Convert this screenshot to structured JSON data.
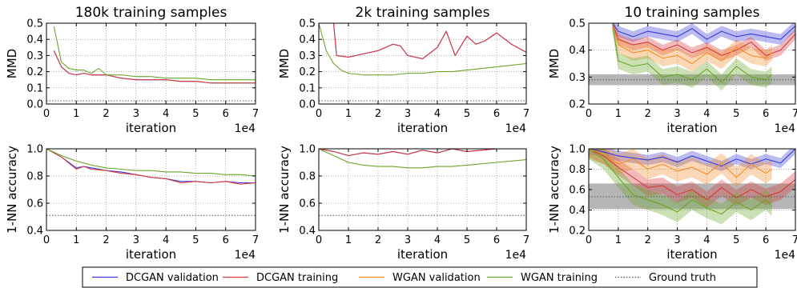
{
  "legend": {
    "placement": "bottom-center",
    "items": [
      {
        "label": "DCGAN validation",
        "color": "#3b3bd9",
        "style": "solid"
      },
      {
        "label": "DCGAN training",
        "color": "#d93b3b",
        "style": "solid"
      },
      {
        "label": "WGAN validation",
        "color": "#f2902e",
        "style": "solid"
      },
      {
        "label": "WGAN training",
        "color": "#6aa62a",
        "style": "solid"
      },
      {
        "label": "Ground truth",
        "color": "#555555",
        "style": "dotted"
      }
    ]
  },
  "colors": {
    "dcgan_val": "#3b3bd9",
    "dcgan_train": "#d93b3b",
    "wgan_val": "#f2902e",
    "wgan_train": "#6aa62a",
    "ground_truth": "#555555",
    "ground_truth_band": "#a9a9a9"
  },
  "chart_data": [
    {
      "type": "line",
      "title": "180k training samples",
      "xlabel": "iteration",
      "xoffset": "1e4",
      "ylabel": "MMD",
      "xlim": [
        0,
        7
      ],
      "ylim": [
        0,
        0.5
      ],
      "xticks": [
        "0",
        "1",
        "2",
        "3",
        "4",
        "5",
        "6",
        "7"
      ],
      "yticks": [
        "0.0",
        "0.1",
        "0.2",
        "0.3",
        "0.4",
        "0.5"
      ],
      "grid": true,
      "series": [
        {
          "key": "dcgan_val",
          "x": [
            0.25,
            0.5,
            0.75,
            1,
            1.25,
            1.5,
            1.75,
            2,
            2.5,
            3,
            3.5,
            4,
            4.5,
            5,
            5.5,
            6,
            6.5,
            7
          ],
          "y": [
            0.33,
            0.23,
            0.19,
            0.18,
            0.19,
            0.18,
            0.18,
            0.18,
            0.16,
            0.15,
            0.15,
            0.15,
            0.14,
            0.14,
            0.13,
            0.13,
            0.13,
            0.13
          ]
        },
        {
          "key": "dcgan_train",
          "x": [
            0.25,
            0.5,
            0.75,
            1,
            1.25,
            1.5,
            1.75,
            2,
            2.5,
            3,
            3.5,
            4,
            4.5,
            5,
            5.5,
            6,
            6.5,
            7
          ],
          "y": [
            0.33,
            0.23,
            0.19,
            0.18,
            0.19,
            0.18,
            0.18,
            0.18,
            0.16,
            0.15,
            0.15,
            0.15,
            0.14,
            0.14,
            0.13,
            0.13,
            0.13,
            0.13
          ]
        },
        {
          "key": "wgan_train",
          "x": [
            0.25,
            0.5,
            0.75,
            1,
            1.25,
            1.5,
            1.75,
            2,
            2.5,
            3,
            3.5,
            4,
            4.5,
            5,
            5.5,
            6,
            6.5,
            7
          ],
          "y": [
            0.48,
            0.26,
            0.22,
            0.21,
            0.21,
            0.19,
            0.22,
            0.18,
            0.18,
            0.17,
            0.17,
            0.16,
            0.16,
            0.16,
            0.15,
            0.15,
            0.15,
            0.15
          ]
        }
      ],
      "ground_truth": {
        "y": 0.02
      }
    },
    {
      "type": "line",
      "title": "2k training samples",
      "xlabel": "iteration",
      "xoffset": "1e4",
      "ylabel": "MMD",
      "xlim": [
        0,
        7
      ],
      "ylim": [
        0,
        0.5
      ],
      "xticks": [
        "0",
        "1",
        "2",
        "3",
        "4",
        "5",
        "6",
        "7"
      ],
      "yticks": [
        "0.0",
        "0.1",
        "0.2",
        "0.3",
        "0.4",
        "0.5"
      ],
      "grid": true,
      "series": [
        {
          "key": "dcgan_val",
          "x": [
            0.5,
            0.6,
            1,
            1.5,
            2,
            2.5,
            2.75,
            3,
            3.5,
            4,
            4.3,
            4.6,
            5,
            5.3,
            5.6,
            6,
            6.5,
            7
          ],
          "y": [
            0.5,
            0.3,
            0.29,
            0.31,
            0.33,
            0.37,
            0.36,
            0.3,
            0.28,
            0.35,
            0.45,
            0.3,
            0.42,
            0.37,
            0.39,
            0.44,
            0.37,
            0.32
          ]
        },
        {
          "key": "dcgan_train",
          "x": [
            0.5,
            0.6,
            1,
            1.5,
            2,
            2.5,
            2.75,
            3,
            3.5,
            4,
            4.3,
            4.6,
            5,
            5.3,
            5.6,
            6,
            6.5,
            7
          ],
          "y": [
            0.5,
            0.3,
            0.29,
            0.31,
            0.33,
            0.37,
            0.36,
            0.3,
            0.28,
            0.35,
            0.45,
            0.3,
            0.42,
            0.37,
            0.39,
            0.44,
            0.37,
            0.32
          ]
        },
        {
          "key": "wgan_train",
          "x": [
            0,
            0.25,
            0.5,
            0.75,
            1,
            1.5,
            2,
            2.5,
            3,
            3.5,
            4,
            4.5,
            5,
            5.5,
            6,
            6.5,
            7
          ],
          "y": [
            0.5,
            0.33,
            0.25,
            0.21,
            0.19,
            0.18,
            0.18,
            0.18,
            0.19,
            0.19,
            0.2,
            0.2,
            0.21,
            0.22,
            0.23,
            0.24,
            0.25
          ]
        }
      ],
      "ground_truth": {
        "y": 0.02
      }
    },
    {
      "type": "line",
      "title": "10 training samples",
      "xlabel": "iteration",
      "xoffset": "1e4",
      "ylabel": "MMD",
      "xlim": [
        0,
        7
      ],
      "ylim": [
        0.2,
        0.5
      ],
      "xticks": [
        "0",
        "1",
        "2",
        "3",
        "4",
        "5",
        "6",
        "7"
      ],
      "yticks": [
        "0.2",
        "0.3",
        "0.4",
        "0.5"
      ],
      "grid": true,
      "series": [
        {
          "key": "dcgan_val",
          "band": 0.02,
          "x": [
            0.8,
            1,
            1.5,
            2,
            2.5,
            3,
            3.5,
            4,
            4.5,
            5,
            5.5,
            6,
            6.5,
            7
          ],
          "y": [
            0.5,
            0.47,
            0.45,
            0.47,
            0.46,
            0.45,
            0.48,
            0.44,
            0.47,
            0.45,
            0.46,
            0.45,
            0.44,
            0.49
          ]
        },
        {
          "key": "dcgan_train",
          "band": 0.02,
          "x": [
            0.8,
            1,
            1.5,
            2,
            2.5,
            3,
            3.5,
            4,
            4.5,
            5,
            5.5,
            6,
            6.5,
            7
          ],
          "y": [
            0.5,
            0.44,
            0.42,
            0.43,
            0.4,
            0.42,
            0.39,
            0.41,
            0.38,
            0.4,
            0.43,
            0.38,
            0.4,
            0.46
          ]
        },
        {
          "key": "wgan_val",
          "band": 0.03,
          "x": [
            0.8,
            1,
            1.5,
            2,
            2.5,
            3,
            3.5,
            4,
            4.5,
            5,
            5.5,
            6,
            6.2
          ],
          "y": [
            0.5,
            0.42,
            0.39,
            0.4,
            0.37,
            0.38,
            0.35,
            0.39,
            0.36,
            0.41,
            0.38,
            0.37,
            0.39
          ]
        },
        {
          "key": "wgan_train",
          "band": 0.03,
          "x": [
            0.8,
            1,
            1.5,
            2,
            2.5,
            3,
            3.5,
            4,
            4.5,
            5,
            5.5,
            6,
            6.2
          ],
          "y": [
            0.5,
            0.36,
            0.34,
            0.35,
            0.3,
            0.31,
            0.29,
            0.33,
            0.28,
            0.34,
            0.3,
            0.29,
            0.31
          ]
        }
      ],
      "ground_truth": {
        "y": 0.29,
        "band": [
          0.27,
          0.31
        ]
      }
    },
    {
      "type": "line",
      "title": "",
      "xlabel": "iteration",
      "xoffset": "1e4",
      "ylabel": "1-NN accuracy",
      "xlim": [
        0,
        7
      ],
      "ylim": [
        0.4,
        1.0
      ],
      "xticks": [
        "0",
        "1",
        "2",
        "3",
        "4",
        "5",
        "6",
        "7"
      ],
      "yticks": [
        "0.4",
        "0.6",
        "0.8",
        "1.0"
      ],
      "grid": true,
      "series": [
        {
          "key": "dcgan_val",
          "x": [
            0,
            0.5,
            1,
            1.25,
            1.5,
            2,
            2.5,
            3,
            3.5,
            4,
            4.5,
            5,
            5.5,
            6,
            6.5,
            7
          ],
          "y": [
            1.0,
            0.94,
            0.86,
            0.87,
            0.86,
            0.84,
            0.83,
            0.81,
            0.79,
            0.78,
            0.76,
            0.76,
            0.75,
            0.76,
            0.75,
            0.75
          ]
        },
        {
          "key": "dcgan_train",
          "x": [
            0,
            0.5,
            1,
            1.25,
            1.5,
            2,
            2.5,
            3,
            3.5,
            4,
            4.5,
            5,
            5.5,
            6,
            6.5,
            7
          ],
          "y": [
            1.0,
            0.94,
            0.85,
            0.87,
            0.85,
            0.84,
            0.82,
            0.81,
            0.79,
            0.78,
            0.75,
            0.76,
            0.75,
            0.76,
            0.74,
            0.75
          ]
        },
        {
          "key": "wgan_train",
          "x": [
            0,
            0.5,
            1,
            1.5,
            2,
            2.5,
            3,
            3.5,
            4,
            4.5,
            5,
            5.5,
            6,
            6.5,
            7
          ],
          "y": [
            1.0,
            0.95,
            0.91,
            0.88,
            0.86,
            0.85,
            0.84,
            0.84,
            0.83,
            0.83,
            0.82,
            0.82,
            0.81,
            0.81,
            0.8
          ]
        }
      ],
      "ground_truth": {
        "y": 0.51
      }
    },
    {
      "type": "line",
      "title": "",
      "xlabel": "iteration",
      "xoffset": "1e4",
      "ylabel": "1-NN accuracy",
      "xlim": [
        0,
        7
      ],
      "ylim": [
        0.4,
        1.0
      ],
      "xticks": [
        "0",
        "1",
        "2",
        "3",
        "4",
        "5",
        "6",
        "7"
      ],
      "yticks": [
        "0.4",
        "0.6",
        "0.8",
        "1.0"
      ],
      "grid": true,
      "series": [
        {
          "key": "dcgan_val",
          "x": [
            0,
            0.5,
            1,
            1.5,
            2,
            2.5,
            3,
            3.5,
            4,
            4.5,
            5,
            5.5,
            6,
            6.5,
            7
          ],
          "y": [
            1.0,
            0.98,
            0.95,
            0.97,
            0.96,
            0.98,
            0.96,
            0.99,
            0.97,
            1.0,
            0.98,
            0.99,
            1.0,
            1.0,
            1.0
          ]
        },
        {
          "key": "dcgan_train",
          "x": [
            0,
            0.5,
            1,
            1.5,
            2,
            2.5,
            3,
            3.5,
            4,
            4.5,
            5,
            5.5,
            6,
            6.5,
            7
          ],
          "y": [
            1.0,
            0.98,
            0.95,
            0.97,
            0.96,
            0.98,
            0.96,
            0.99,
            0.97,
            1.0,
            0.98,
            0.99,
            1.0,
            1.0,
            1.0
          ]
        },
        {
          "key": "wgan_train",
          "x": [
            0,
            0.5,
            1,
            1.5,
            2,
            2.5,
            3,
            3.5,
            4,
            4.5,
            5,
            5.5,
            6,
            6.5,
            7
          ],
          "y": [
            1.0,
            0.95,
            0.9,
            0.88,
            0.87,
            0.87,
            0.86,
            0.86,
            0.87,
            0.87,
            0.88,
            0.89,
            0.9,
            0.91,
            0.92
          ]
        }
      ],
      "ground_truth": {
        "y": 0.51
      }
    },
    {
      "type": "line",
      "title": "",
      "xlabel": "iteration",
      "xoffset": "1e4",
      "ylabel": "1-NN accuracy",
      "xlim": [
        0,
        7
      ],
      "ylim": [
        0.2,
        1.0
      ],
      "xticks": [
        "0",
        "1",
        "2",
        "3",
        "4",
        "5",
        "6",
        "7"
      ],
      "yticks": [
        "0.2",
        "0.4",
        "0.6",
        "0.8",
        "1.0"
      ],
      "grid": true,
      "series": [
        {
          "key": "dcgan_val",
          "band": 0.05,
          "x": [
            0,
            0.5,
            1,
            1.5,
            2,
            2.5,
            3,
            3.5,
            4,
            4.5,
            5,
            5.5,
            6,
            6.5,
            7
          ],
          "y": [
            1.0,
            0.97,
            0.93,
            0.91,
            0.89,
            0.92,
            0.87,
            0.93,
            0.88,
            0.83,
            0.9,
            0.85,
            0.9,
            0.86,
            1.0
          ]
        },
        {
          "key": "dcgan_train",
          "band": 0.08,
          "x": [
            0,
            0.5,
            1,
            1.5,
            2,
            2.5,
            3,
            3.5,
            4,
            4.5,
            5,
            5.5,
            6,
            6.5,
            7
          ],
          "y": [
            1.0,
            0.93,
            0.82,
            0.72,
            0.62,
            0.64,
            0.55,
            0.6,
            0.5,
            0.62,
            0.52,
            0.6,
            0.53,
            0.58,
            0.7
          ]
        },
        {
          "key": "wgan_val",
          "band": 0.1,
          "x": [
            0,
            0.5,
            1,
            1.5,
            2,
            2.5,
            3,
            3.5,
            4,
            4.5,
            5,
            5.5,
            6,
            6.2
          ],
          "y": [
            1.0,
            0.95,
            0.85,
            0.9,
            0.8,
            0.85,
            0.78,
            0.82,
            0.75,
            0.86,
            0.72,
            0.85,
            0.76,
            0.8
          ]
        },
        {
          "key": "wgan_train",
          "band": 0.1,
          "x": [
            0,
            0.5,
            1,
            1.5,
            2,
            2.5,
            3,
            3.5,
            4,
            4.5,
            5,
            5.5,
            6,
            6.2
          ],
          "y": [
            1.0,
            0.9,
            0.72,
            0.55,
            0.5,
            0.45,
            0.38,
            0.5,
            0.42,
            0.36,
            0.48,
            0.4,
            0.5,
            0.44
          ]
        }
      ],
      "ground_truth": {
        "y": 0.53,
        "band": [
          0.41,
          0.66
        ]
      }
    }
  ]
}
